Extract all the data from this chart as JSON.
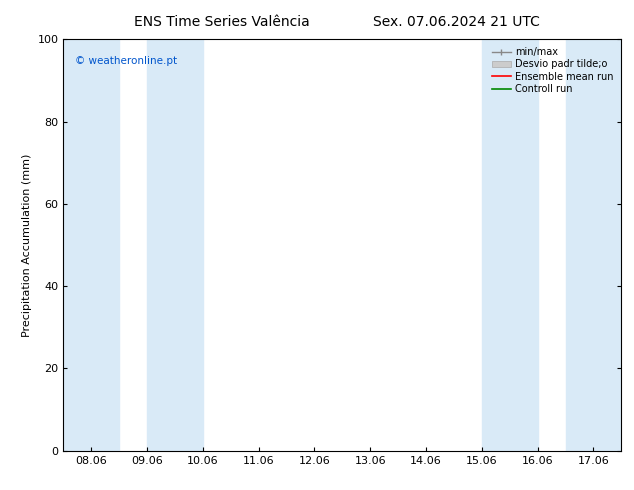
{
  "title": "ENS Time Series Valência",
  "title2": "Sex. 07.06.2024 21 UTC",
  "ylabel": "Precipitation Accumulation (mm)",
  "ylim": [
    0,
    100
  ],
  "yticks": [
    0,
    20,
    40,
    60,
    80,
    100
  ],
  "xlabels": [
    "08.06",
    "09.06",
    "10.06",
    "11.06",
    "12.06",
    "13.06",
    "14.06",
    "15.06",
    "16.06",
    "17.06"
  ],
  "xvalues": [
    0,
    1,
    2,
    3,
    4,
    5,
    6,
    7,
    8,
    9
  ],
  "xlim": [
    -0.5,
    9.5
  ],
  "shaded_bands": [
    [
      -0.5,
      0.5
    ],
    [
      1.0,
      2.0
    ],
    [
      7.0,
      8.0
    ],
    [
      8.5,
      9.5
    ]
  ],
  "band_color": "#d9eaf7",
  "watermark": "© weatheronline.pt",
  "watermark_color": "#0055cc",
  "background_color": "#ffffff",
  "legend_entries": [
    "min/max",
    "Desvio padr tilde;o",
    "Ensemble mean run",
    "Controll run"
  ],
  "title_fontsize": 10,
  "label_fontsize": 8,
  "tick_fontsize": 8
}
